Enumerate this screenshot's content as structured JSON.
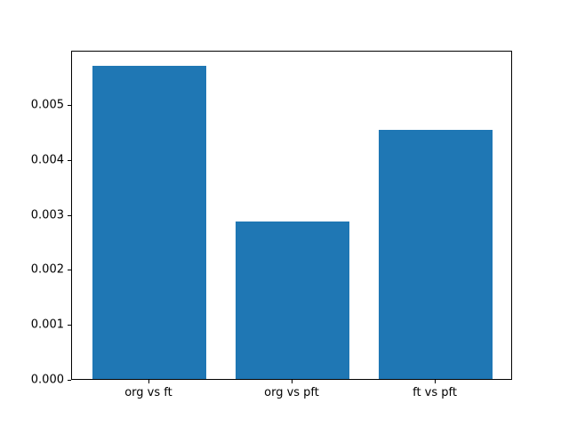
{
  "chart_data": {
    "type": "bar",
    "categories": [
      "org vs ft",
      "org vs pft",
      "ft vs pft"
    ],
    "values": [
      0.0057,
      0.00287,
      0.00453
    ],
    "title": "",
    "xlabel": "",
    "ylabel": "",
    "ylim": [
      0,
      0.005985
    ],
    "xlim": [
      -0.54,
      2.54
    ],
    "bar_width": 0.8,
    "yticks": [
      0,
      0.001,
      0.002,
      0.003,
      0.004,
      0.005
    ],
    "ytick_labels": [
      "0.000",
      "0.001",
      "0.002",
      "0.003",
      "0.004",
      "0.005"
    ],
    "bar_color": "#1f77b4",
    "frame_color": "#000000",
    "background_color": "#ffffff",
    "grid": false,
    "legend": null
  }
}
